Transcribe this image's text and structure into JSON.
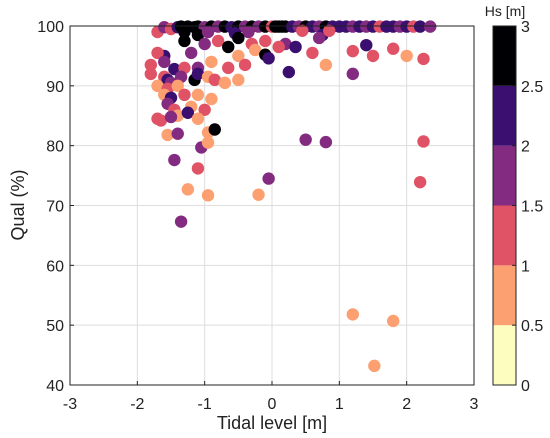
{
  "chart_data": {
    "type": "scatter",
    "title": "",
    "xlabel": "Tidal level [m]",
    "ylabel": "Qual (%)",
    "xlim": [
      -3,
      3
    ],
    "ylim": [
      40,
      100
    ],
    "xticks": [
      "-3",
      "-2",
      "-1",
      "0",
      "1",
      "2",
      "3"
    ],
    "yticks": [
      "40",
      "50",
      "60",
      "70",
      "80",
      "90",
      "100"
    ],
    "grid": true,
    "colorbar": {
      "title": "Hs [m]",
      "range": [
        0,
        3
      ],
      "ticks": [
        "0",
        "0.5",
        "1",
        "1.5",
        "2",
        "2.5",
        "3"
      ],
      "bins": [
        {
          "from": 0.0,
          "to": 0.5,
          "color": "#fcfdbf"
        },
        {
          "from": 0.5,
          "to": 1.0,
          "color": "#fc9f71"
        },
        {
          "from": 1.0,
          "to": 1.5,
          "color": "#e05265"
        },
        {
          "from": 1.5,
          "to": 2.0,
          "color": "#832b81"
        },
        {
          "from": 2.0,
          "to": 2.5,
          "color": "#3b0f70"
        },
        {
          "from": 2.5,
          "to": 3.0,
          "color": "#000004"
        }
      ]
    },
    "points": [
      {
        "x": -1.7,
        "y": 99.0,
        "hs": 1.2
      },
      {
        "x": -1.6,
        "y": 99.8,
        "hs": 1.7
      },
      {
        "x": -1.5,
        "y": 99.5,
        "hs": 1.3
      },
      {
        "x": -1.4,
        "y": 99.8,
        "hs": 2.2
      },
      {
        "x": -1.35,
        "y": 99.9,
        "hs": 2.8
      },
      {
        "x": -1.25,
        "y": 99.9,
        "hs": 2.9
      },
      {
        "x": -1.15,
        "y": 99.8,
        "hs": 2.7
      },
      {
        "x": -1.1,
        "y": 99.9,
        "hs": 2.6
      },
      {
        "x": -1.0,
        "y": 99.8,
        "hs": 1.7
      },
      {
        "x": -0.9,
        "y": 99.9,
        "hs": 2.8
      },
      {
        "x": -0.8,
        "y": 99.9,
        "hs": 1.8
      },
      {
        "x": -0.7,
        "y": 99.9,
        "hs": 2.9
      },
      {
        "x": -0.6,
        "y": 99.8,
        "hs": 2.3
      },
      {
        "x": -0.5,
        "y": 99.9,
        "hs": 2.7
      },
      {
        "x": -0.4,
        "y": 99.9,
        "hs": 1.7
      },
      {
        "x": -0.3,
        "y": 99.9,
        "hs": 2.9
      },
      {
        "x": -0.2,
        "y": 99.9,
        "hs": 1.8
      },
      {
        "x": -0.1,
        "y": 99.9,
        "hs": 2.6
      },
      {
        "x": 0.0,
        "y": 99.9,
        "hs": 1.2
      },
      {
        "x": 0.05,
        "y": 99.9,
        "hs": 2.9
      },
      {
        "x": 0.1,
        "y": 99.9,
        "hs": 2.8
      },
      {
        "x": 0.15,
        "y": 99.9,
        "hs": 2.9
      },
      {
        "x": 0.2,
        "y": 99.9,
        "hs": 2.7
      },
      {
        "x": 0.3,
        "y": 99.9,
        "hs": 2.2
      },
      {
        "x": 0.4,
        "y": 99.9,
        "hs": 1.7
      },
      {
        "x": 0.5,
        "y": 99.9,
        "hs": 2.9
      },
      {
        "x": 0.6,
        "y": 99.9,
        "hs": 2.3
      },
      {
        "x": 0.7,
        "y": 99.9,
        "hs": 1.8
      },
      {
        "x": 0.8,
        "y": 99.9,
        "hs": 2.9
      },
      {
        "x": 0.9,
        "y": 99.9,
        "hs": 2.2
      },
      {
        "x": 1.0,
        "y": 99.9,
        "hs": 2.1
      },
      {
        "x": 1.1,
        "y": 99.9,
        "hs": 2.3
      },
      {
        "x": 1.2,
        "y": 99.9,
        "hs": 1.7
      },
      {
        "x": 1.3,
        "y": 99.9,
        "hs": 2.2
      },
      {
        "x": 1.4,
        "y": 99.9,
        "hs": 1.6
      },
      {
        "x": 1.5,
        "y": 99.9,
        "hs": 2.1
      },
      {
        "x": 1.6,
        "y": 99.9,
        "hs": 1.2
      },
      {
        "x": 1.7,
        "y": 99.9,
        "hs": 2.2
      },
      {
        "x": 1.8,
        "y": 99.9,
        "hs": 2.3
      },
      {
        "x": 1.9,
        "y": 99.9,
        "hs": 1.7
      },
      {
        "x": 2.0,
        "y": 99.9,
        "hs": 2.2
      },
      {
        "x": 2.1,
        "y": 99.9,
        "hs": 1.3
      },
      {
        "x": 2.2,
        "y": 99.9,
        "hs": 2.2
      },
      {
        "x": 2.35,
        "y": 99.9,
        "hs": 1.7
      },
      {
        "x": -1.3,
        "y": 99.0,
        "hs": 2.8
      },
      {
        "x": -1.1,
        "y": 98.5,
        "hs": 2.9
      },
      {
        "x": -0.95,
        "y": 99.0,
        "hs": 1.8
      },
      {
        "x": -0.55,
        "y": 98.8,
        "hs": 2.3
      },
      {
        "x": -0.35,
        "y": 99.0,
        "hs": 1.8
      },
      {
        "x": 0.45,
        "y": 99.2,
        "hs": 1.3
      },
      {
        "x": 0.75,
        "y": 98.5,
        "hs": 2.2
      },
      {
        "x": 0.85,
        "y": 99.2,
        "hs": 1.2
      },
      {
        "x": -1.3,
        "y": 97.5,
        "hs": 2.8
      },
      {
        "x": -1.0,
        "y": 97.0,
        "hs": 1.7
      },
      {
        "x": -0.8,
        "y": 97.5,
        "hs": 1.2
      },
      {
        "x": -0.5,
        "y": 98.0,
        "hs": 2.9
      },
      {
        "x": -0.3,
        "y": 97.0,
        "hs": 1.2
      },
      {
        "x": -0.1,
        "y": 97.5,
        "hs": 1.3
      },
      {
        "x": 0.2,
        "y": 97.0,
        "hs": 1.7
      },
      {
        "x": 0.35,
        "y": 96.5,
        "hs": 2.2
      },
      {
        "x": 0.7,
        "y": 98.0,
        "hs": 1.6
      },
      {
        "x": -0.65,
        "y": 96.5,
        "hs": 2.9
      },
      {
        "x": -0.25,
        "y": 96.0,
        "hs": 0.8
      },
      {
        "x": 0.1,
        "y": 96.5,
        "hs": 1.3
      },
      {
        "x": 1.4,
        "y": 96.8,
        "hs": 2.2
      },
      {
        "x": 1.8,
        "y": 96.2,
        "hs": 1.2
      },
      {
        "x": -1.6,
        "y": 95.0,
        "hs": 2.2
      },
      {
        "x": -1.2,
        "y": 95.5,
        "hs": 1.8
      },
      {
        "x": -0.5,
        "y": 95.0,
        "hs": 0.8
      },
      {
        "x": -0.1,
        "y": 95.2,
        "hs": 2.9
      },
      {
        "x": -0.05,
        "y": 94.6,
        "hs": 2.1
      },
      {
        "x": 0.6,
        "y": 95.5,
        "hs": 1.3
      },
      {
        "x": 1.2,
        "y": 95.8,
        "hs": 1.2
      },
      {
        "x": 1.5,
        "y": 95.0,
        "hs": 1.3
      },
      {
        "x": 2.25,
        "y": 94.5,
        "hs": 1.2
      },
      {
        "x": 2.0,
        "y": 95.0,
        "hs": 0.8
      },
      {
        "x": -1.7,
        "y": 95.5,
        "hs": 1.3
      },
      {
        "x": -1.8,
        "y": 93.5,
        "hs": 1.2
      },
      {
        "x": -1.6,
        "y": 94.0,
        "hs": 1.7
      },
      {
        "x": -1.45,
        "y": 92.8,
        "hs": 2.2
      },
      {
        "x": -1.3,
        "y": 93.0,
        "hs": 1.3
      },
      {
        "x": -1.1,
        "y": 93.0,
        "hs": 1.8
      },
      {
        "x": -0.9,
        "y": 94.0,
        "hs": 0.8
      },
      {
        "x": -0.65,
        "y": 93.0,
        "hs": 1.3
      },
      {
        "x": -0.4,
        "y": 93.5,
        "hs": 1.2
      },
      {
        "x": 0.25,
        "y": 92.3,
        "hs": 2.2
      },
      {
        "x": 0.8,
        "y": 93.5,
        "hs": 0.8
      },
      {
        "x": 1.2,
        "y": 92.0,
        "hs": 1.7
      },
      {
        "x": -1.8,
        "y": 92.0,
        "hs": 1.2
      },
      {
        "x": -1.6,
        "y": 91.5,
        "hs": 1.3
      },
      {
        "x": -1.55,
        "y": 91.0,
        "hs": 2.2
      },
      {
        "x": -1.5,
        "y": 90.5,
        "hs": 1.7
      },
      {
        "x": -1.35,
        "y": 91.5,
        "hs": 1.8
      },
      {
        "x": -1.15,
        "y": 91.0,
        "hs": 2.9
      },
      {
        "x": -1.1,
        "y": 92.0,
        "hs": 2.2
      },
      {
        "x": -0.95,
        "y": 91.5,
        "hs": 0.8
      },
      {
        "x": -0.85,
        "y": 91.0,
        "hs": 1.2
      },
      {
        "x": -0.7,
        "y": 90.5,
        "hs": 0.8
      },
      {
        "x": -0.5,
        "y": 91.0,
        "hs": 0.8
      },
      {
        "x": -1.7,
        "y": 90.0,
        "hs": 0.8
      },
      {
        "x": -1.55,
        "y": 89.5,
        "hs": 1.3
      },
      {
        "x": -1.4,
        "y": 90.0,
        "hs": 0.8
      },
      {
        "x": -1.6,
        "y": 88.5,
        "hs": 0.8
      },
      {
        "x": -1.5,
        "y": 88.0,
        "hs": 2.2
      },
      {
        "x": -1.3,
        "y": 88.5,
        "hs": 1.2
      },
      {
        "x": -1.1,
        "y": 88.5,
        "hs": 0.8
      },
      {
        "x": -0.9,
        "y": 87.8,
        "hs": 0.8
      },
      {
        "x": -1.55,
        "y": 87.0,
        "hs": 1.7
      },
      {
        "x": -1.45,
        "y": 86.0,
        "hs": 1.3
      },
      {
        "x": -1.2,
        "y": 86.5,
        "hs": 0.8
      },
      {
        "x": -1.0,
        "y": 86.0,
        "hs": 1.3
      },
      {
        "x": -1.4,
        "y": 85.0,
        "hs": 0.8
      },
      {
        "x": -1.25,
        "y": 85.5,
        "hs": 2.2
      },
      {
        "x": -1.7,
        "y": 84.5,
        "hs": 1.3
      },
      {
        "x": -1.65,
        "y": 84.2,
        "hs": 1.2
      },
      {
        "x": -1.5,
        "y": 84.8,
        "hs": 1.7
      },
      {
        "x": -1.1,
        "y": 84.5,
        "hs": 0.8
      },
      {
        "x": -1.55,
        "y": 81.8,
        "hs": 0.8
      },
      {
        "x": -1.4,
        "y": 82.0,
        "hs": 1.8
      },
      {
        "x": -0.95,
        "y": 82.2,
        "hs": 0.8
      },
      {
        "x": -0.85,
        "y": 82.7,
        "hs": 2.9
      },
      {
        "x": -1.05,
        "y": 79.7,
        "hs": 1.7
      },
      {
        "x": -0.95,
        "y": 80.5,
        "hs": 0.8
      },
      {
        "x": -1.45,
        "y": 77.6,
        "hs": 1.8
      },
      {
        "x": -1.1,
        "y": 76.2,
        "hs": 1.3
      },
      {
        "x": -1.25,
        "y": 72.7,
        "hs": 0.8
      },
      {
        "x": -0.95,
        "y": 71.7,
        "hs": 0.8
      },
      {
        "x": -0.2,
        "y": 71.8,
        "hs": 0.8
      },
      {
        "x": -0.05,
        "y": 74.5,
        "hs": 1.7
      },
      {
        "x": -1.35,
        "y": 67.3,
        "hs": 1.8
      },
      {
        "x": 0.5,
        "y": 81.0,
        "hs": 1.7
      },
      {
        "x": 0.8,
        "y": 80.6,
        "hs": 1.7
      },
      {
        "x": 2.25,
        "y": 80.7,
        "hs": 1.2
      },
      {
        "x": 2.2,
        "y": 73.9,
        "hs": 1.2
      },
      {
        "x": 1.2,
        "y": 51.8,
        "hs": 0.8
      },
      {
        "x": 1.8,
        "y": 50.7,
        "hs": 0.8
      },
      {
        "x": 1.52,
        "y": 43.2,
        "hs": 0.8
      }
    ]
  }
}
